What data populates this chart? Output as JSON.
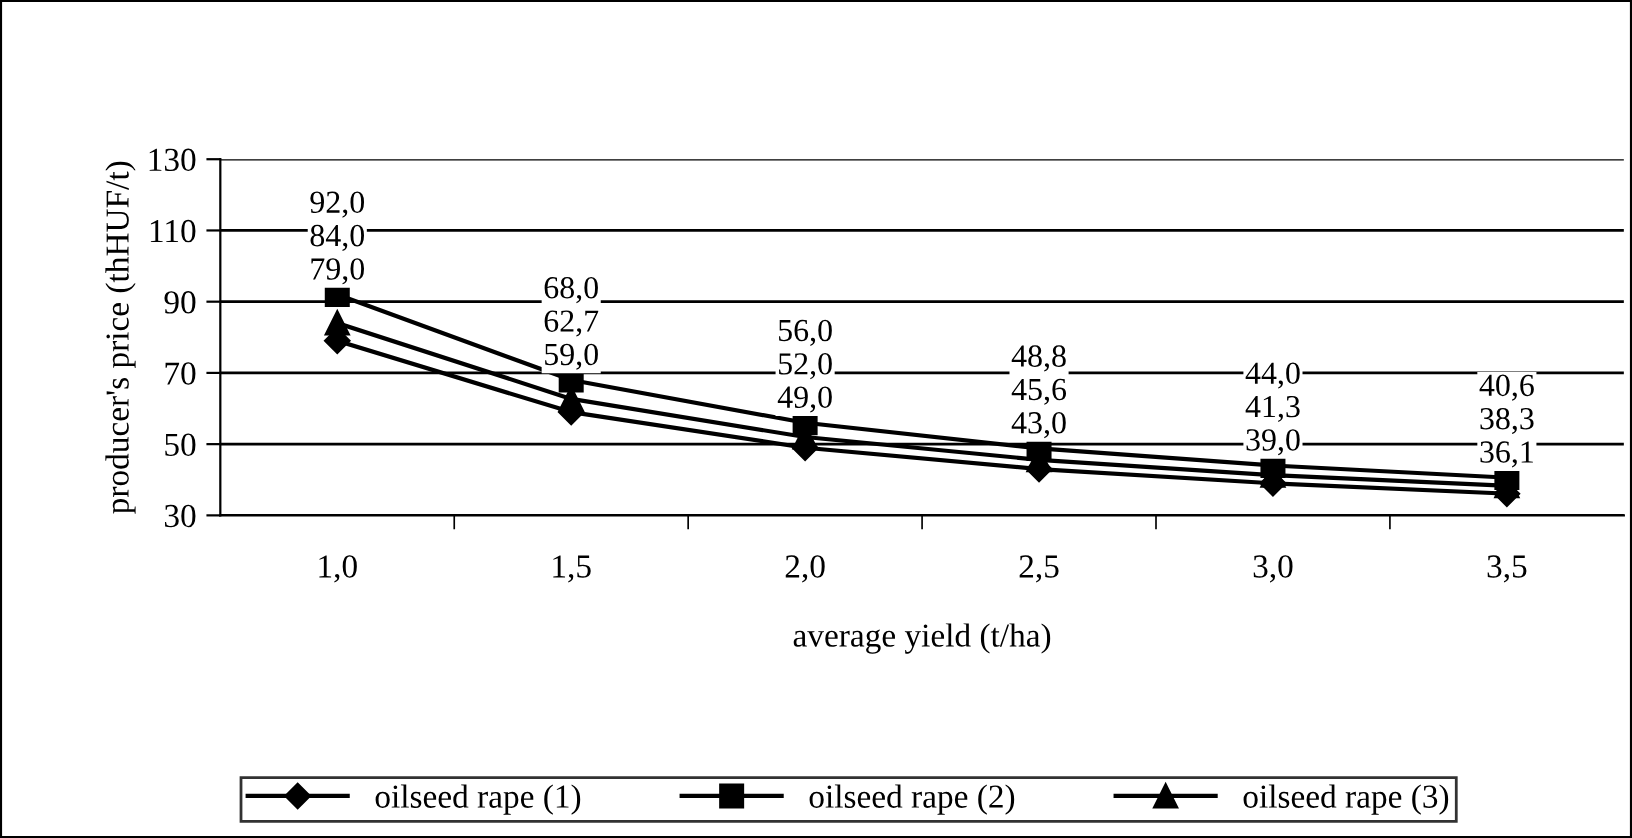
{
  "chart_data": {
    "type": "line",
    "xlabel": "average yield (t/ha)",
    "ylabel": "producer's price (thHUF/t)",
    "categories": [
      "1,0",
      "1,5",
      "2,0",
      "2,5",
      "3,0",
      "3,5"
    ],
    "series": [
      {
        "name": "oilseed rape (1)",
        "color": "#000000",
        "marker": "diamond",
        "values": [
          79.0,
          59.0,
          49.0,
          43.0,
          39.0,
          36.1
        ],
        "value_labels": [
          "79,0",
          "59,0",
          "49,0",
          "43,0",
          "39,0",
          "36,1"
        ]
      },
      {
        "name": "oilseed rape (2)",
        "color": "#000000",
        "marker": "square",
        "values": [
          92.0,
          68.0,
          56.0,
          48.8,
          44.0,
          40.6
        ],
        "value_labels": [
          "92,0",
          "68,0",
          "56,0",
          "48,8",
          "44,0",
          "40,6"
        ]
      },
      {
        "name": "oilseed rape (3)",
        "color": "#000000",
        "marker": "triangle",
        "values": [
          84.0,
          62.7,
          52.0,
          45.6,
          41.3,
          38.3
        ],
        "value_labels": [
          "84,0",
          "62,7",
          "52,0",
          "45,6",
          "41,3",
          "38,3"
        ]
      }
    ],
    "ylim": [
      30,
      130
    ],
    "yticks": [
      30,
      50,
      70,
      90,
      110,
      130
    ],
    "grid": "y",
    "legend": "bottom",
    "line_style": "solid"
  }
}
